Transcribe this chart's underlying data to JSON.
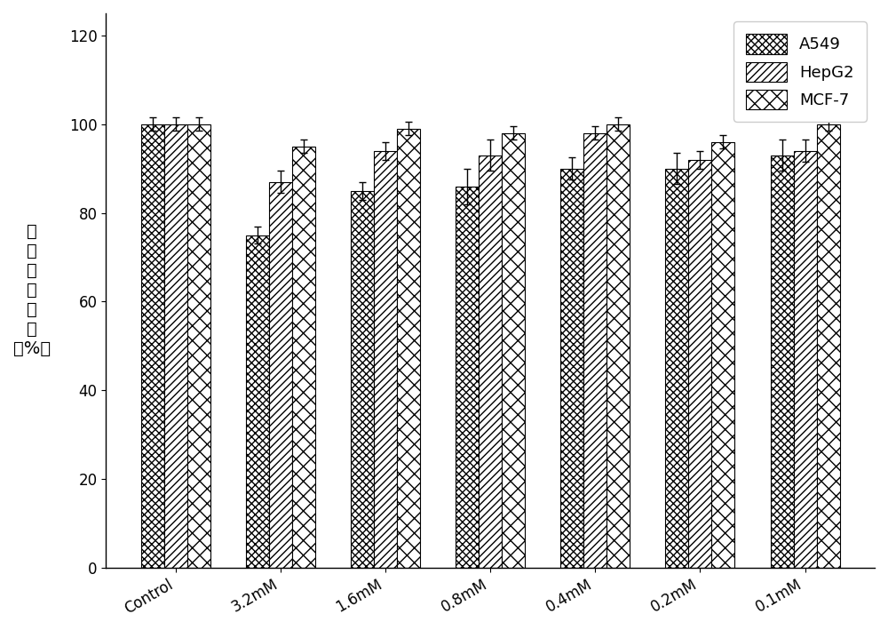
{
  "categories": [
    "Control",
    "3.2mM",
    "1.6mM",
    "0.8mM",
    "0.4mM",
    "0.2mM",
    "0.1mM"
  ],
  "series": {
    "A549": [
      100,
      75,
      85,
      86,
      90,
      90,
      93
    ],
    "HepG2": [
      100,
      87,
      94,
      93,
      98,
      92,
      94
    ],
    "MCF-7": [
      100,
      95,
      99,
      98,
      100,
      96,
      100
    ]
  },
  "errors": {
    "A549": [
      1.5,
      2.0,
      2.0,
      4.0,
      2.5,
      3.5,
      3.5
    ],
    "HepG2": [
      1.5,
      2.5,
      2.0,
      3.5,
      1.5,
      2.0,
      2.5
    ],
    "MCF-7": [
      1.5,
      1.5,
      1.5,
      1.5,
      1.5,
      1.5,
      1.5
    ]
  },
  "bar_colors": [
    "#ffffff",
    "#ffffff",
    "#ffffff"
  ],
  "hatch_patterns": [
    "xxxx",
    "////",
    "xx"
  ],
  "legend_labels": [
    "A549",
    "HepG2",
    "MCF-7"
  ],
  "ylabel_chars": [
    "相",
    "对",
    "细",
    "胞",
    "活",
    "性",
    "（%）"
  ],
  "ylim": [
    0,
    125
  ],
  "yticks": [
    0,
    20,
    40,
    60,
    80,
    100,
    120
  ],
  "bar_width": 0.22,
  "background_color": "#ffffff",
  "edge_color": "#000000",
  "error_color": "#000000",
  "legend_fontsize": 13,
  "axis_fontsize": 14,
  "tick_fontsize": 12
}
